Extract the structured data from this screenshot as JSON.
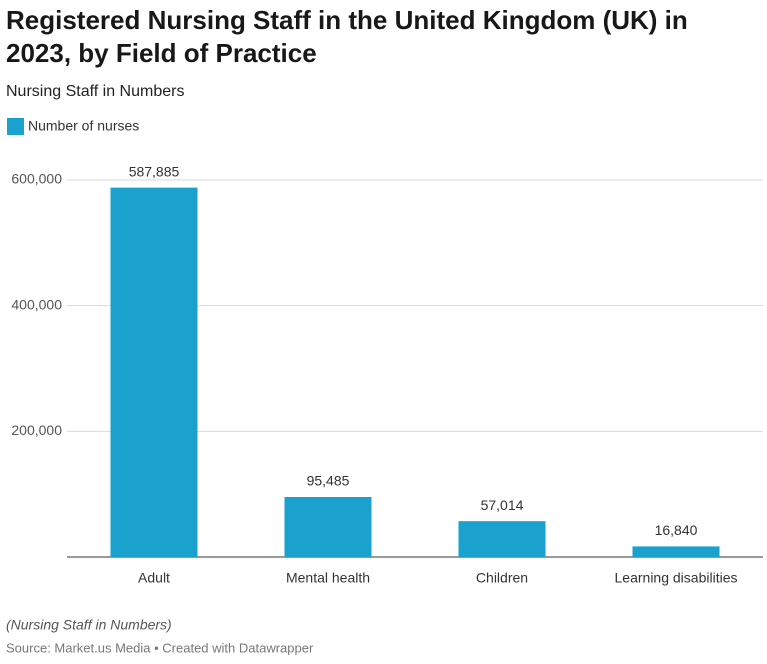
{
  "chart_data": {
    "type": "bar",
    "title": "Registered Nursing Staff in the United Kingdom (UK) in 2023, by Field of Practice",
    "subtitle": "Nursing Staff in Numbers",
    "categories": [
      "Adult",
      "Mental health",
      "Children",
      "Learning disabilities"
    ],
    "series": [
      {
        "name": "Number of nurses",
        "color": "#1aa1cd",
        "values": [
          587885,
          95485,
          57014,
          16840
        ],
        "value_labels": [
          "587,885",
          "95,485",
          "57,014",
          "16,840"
        ]
      }
    ],
    "ylim": [
      0,
      600000
    ],
    "yticks": [
      {
        "value": 200000,
        "label": "200,000"
      },
      {
        "value": 400000,
        "label": "400,000"
      },
      {
        "value": 600000,
        "label": "600,000"
      }
    ],
    "grid": true,
    "note": "(Nursing Staff in Numbers)",
    "source": "Source: Market.us Media • Created with Datawrapper"
  }
}
